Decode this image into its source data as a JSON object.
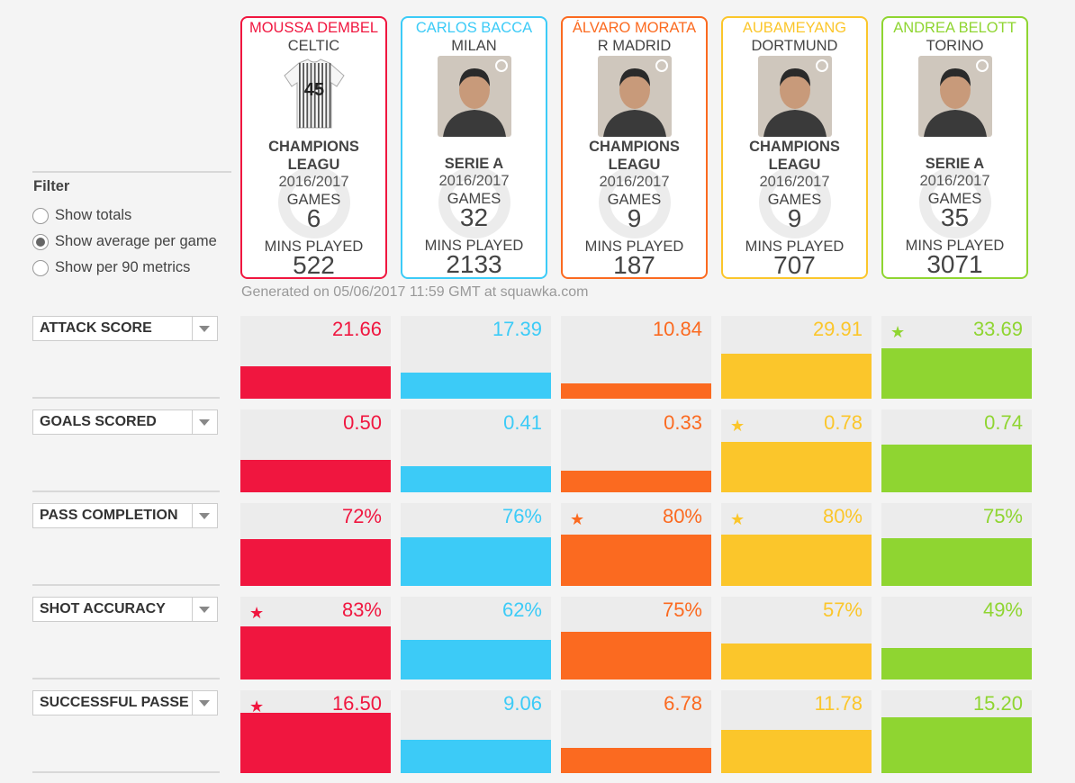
{
  "players": [
    {
      "name": "MOUSSA DEMBEL",
      "club": "CELTIC",
      "photo": "jersey-placeholder",
      "jersey_number": "45",
      "competition": [
        "CHAMPIONS",
        "LEAGU"
      ],
      "season": "2016/2017",
      "games_label": "GAMES",
      "games": "6",
      "mins_label": "MINS PLAYED",
      "mins": "522",
      "color": "#f0163f"
    },
    {
      "name": "CARLOS BACCA",
      "club": "MILAN",
      "photo": "player-photo",
      "competition": [
        "SERIE A"
      ],
      "season": "2016/2017",
      "games_label": "GAMES",
      "games": "32",
      "mins_label": "MINS PLAYED",
      "mins": "2133",
      "color": "#3ccbf7"
    },
    {
      "name": "ÁLVARO MORATA",
      "club": "R MADRID",
      "photo": "player-photo",
      "competition": [
        "CHAMPIONS",
        "LEAGU"
      ],
      "season": "2016/2017",
      "games_label": "GAMES",
      "games": "9",
      "mins_label": "MINS PLAYED",
      "mins": "187",
      "color": "#fb6a20"
    },
    {
      "name": "AUBAMEYANG",
      "club": "DORTMUND",
      "photo": "player-photo",
      "competition": [
        "CHAMPIONS",
        "LEAGU"
      ],
      "season": "2016/2017",
      "games_label": "GAMES",
      "games": "9",
      "mins_label": "MINS PLAYED",
      "mins": "707",
      "color": "#fbc62b"
    },
    {
      "name": "ANDREA BELOTT",
      "club": "TORINO",
      "photo": "player-photo",
      "competition": [
        "SERIE A"
      ],
      "season": "2016/2017",
      "games_label": "GAMES",
      "games": "35",
      "mins_label": "MINS PLAYED",
      "mins": "3071",
      "color": "#8fd531"
    }
  ],
  "generated_text": "Generated on 05/06/2017 11:59 GMT at squawka.com",
  "filter": {
    "title": "Filter",
    "options": [
      {
        "label": "Show totals",
        "selected": false
      },
      {
        "label": "Show average per game",
        "selected": true
      },
      {
        "label": "Show per 90 metrics",
        "selected": false
      }
    ]
  },
  "metrics": [
    {
      "label": "ATTACK SCORE",
      "values": [
        "21.66",
        "17.39",
        "10.84",
        "29.91",
        "33.69"
      ],
      "bar_fraction": [
        0.39,
        0.31,
        0.19,
        0.54,
        0.61
      ],
      "star": [
        false,
        false,
        false,
        false,
        true
      ]
    },
    {
      "label": "GOALS SCORED",
      "values": [
        "0.50",
        "0.41",
        "0.33",
        "0.78",
        "0.74"
      ],
      "bar_fraction": [
        0.39,
        0.32,
        0.26,
        0.61,
        0.58
      ],
      "star": [
        false,
        false,
        false,
        true,
        false
      ]
    },
    {
      "label": "PASS COMPLETION",
      "values": [
        "72%",
        "76%",
        "80%",
        "80%",
        "75%"
      ],
      "bar_fraction": [
        0.56,
        0.59,
        0.62,
        0.62,
        0.58
      ],
      "star": [
        false,
        false,
        true,
        true,
        false
      ]
    },
    {
      "label": "SHOT ACCURACY",
      "values": [
        "83%",
        "62%",
        "75%",
        "57%",
        "49%"
      ],
      "bar_fraction": [
        0.64,
        0.48,
        0.58,
        0.44,
        0.38
      ],
      "star": [
        true,
        false,
        false,
        false,
        false
      ]
    },
    {
      "label": "SUCCESSFUL PASSE",
      "values": [
        "16.50",
        "9.06",
        "6.78",
        "11.78",
        "15.20"
      ],
      "bar_fraction": [
        0.73,
        0.4,
        0.3,
        0.52,
        0.67
      ],
      "star": [
        true,
        false,
        false,
        false,
        false
      ]
    }
  ]
}
